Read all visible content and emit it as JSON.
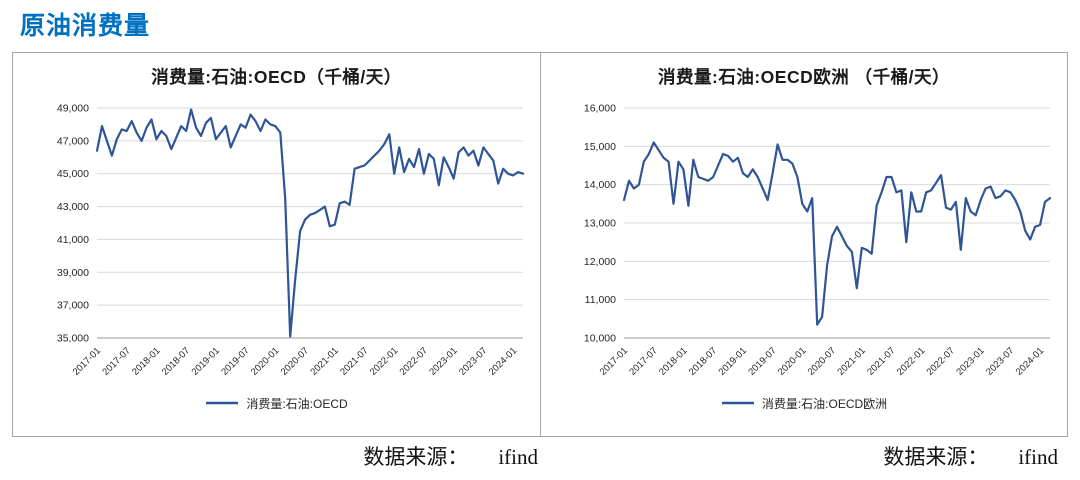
{
  "page": {
    "header": "原油消费量"
  },
  "sources": {
    "left": {
      "label": "数据来源：",
      "value": "ifind"
    },
    "right": {
      "label": "数据来源：",
      "value": "ifind"
    }
  },
  "chart_data": [
    {
      "type": "line",
      "title": "消费量:石油:OECD（千桶/天）",
      "legend": "消费量:石油:OECD",
      "line_color": "#2f5597",
      "grid": true,
      "legend_position": "bottom",
      "ylim": [
        35000,
        49000
      ],
      "ytick_step": 2000,
      "ytick_labels": [
        "35,000",
        "37,000",
        "39,000",
        "41,000",
        "43,000",
        "45,000",
        "47,000",
        "49,000"
      ],
      "x_start": "2017-01",
      "x_end": "2024-03",
      "frequency": "monthly",
      "x_tick_labels": [
        "2017-01",
        "2017-07",
        "2018-01",
        "2018-07",
        "2019-01",
        "2019-07",
        "2020-01",
        "2020-07",
        "2021-01",
        "2021-07",
        "2022-01",
        "2022-07",
        "2023-01",
        "2023-07",
        "2024-01"
      ],
      "x_tick_every": 6,
      "values": [
        46400,
        47900,
        47000,
        46100,
        47100,
        47700,
        47600,
        48200,
        47500,
        47000,
        47800,
        48300,
        47100,
        47600,
        47300,
        46500,
        47200,
        47900,
        47600,
        48900,
        47800,
        47300,
        48100,
        48400,
        47100,
        47500,
        47900,
        46600,
        47300,
        48000,
        47800,
        48600,
        48200,
        47600,
        48300,
        48000,
        47900,
        47500,
        43500,
        35100,
        38500,
        41500,
        42200,
        42500,
        42600,
        42800,
        43000,
        41800,
        41900,
        43200,
        43300,
        43100,
        45300,
        45400,
        45500,
        45800,
        46100,
        46400,
        46800,
        47400,
        45000,
        46600,
        45100,
        45900,
        45400,
        46500,
        45000,
        46200,
        45900,
        44300,
        46000,
        45400,
        44700,
        46300,
        46600,
        46100,
        46400,
        45500,
        46600,
        46200,
        45800,
        44400,
        45300,
        45000,
        44900,
        45100,
        45000
      ]
    },
    {
      "type": "line",
      "title": "消费量:石油:OECD欧洲 （千桶/天）",
      "legend": "消费量:石油:OECD欧洲",
      "line_color": "#2f5597",
      "grid": true,
      "legend_position": "bottom",
      "ylim": [
        10000,
        16000
      ],
      "ytick_step": 1000,
      "ytick_labels": [
        "10,000",
        "11,000",
        "12,000",
        "13,000",
        "14,000",
        "15,000",
        "16,000"
      ],
      "x_start": "2017-01",
      "x_end": "2024-03",
      "frequency": "monthly",
      "x_tick_labels": [
        "2017-01",
        "2017-07",
        "2018-01",
        "2018-07",
        "2019-01",
        "2019-07",
        "2020-01",
        "2020-07",
        "2021-01",
        "2021-07",
        "2022-01",
        "2022-07",
        "2023-01",
        "2023-07",
        "2024-01"
      ],
      "x_tick_every": 6,
      "values": [
        13600,
        14100,
        13900,
        14000,
        14600,
        14800,
        15100,
        14900,
        14700,
        14600,
        13500,
        14600,
        14400,
        13450,
        14650,
        14200,
        14150,
        14100,
        14200,
        14500,
        14800,
        14750,
        14600,
        14700,
        14300,
        14200,
        14400,
        14200,
        13900,
        13600,
        14300,
        15050,
        14650,
        14650,
        14550,
        14200,
        13500,
        13300,
        13650,
        10350,
        10550,
        11900,
        12650,
        12900,
        12650,
        12400,
        12250,
        11300,
        12350,
        12300,
        12200,
        13450,
        13800,
        14200,
        14200,
        13800,
        13850,
        12500,
        13800,
        13300,
        13300,
        13800,
        13850,
        14050,
        14250,
        13400,
        13350,
        13550,
        12300,
        13650,
        13300,
        13200,
        13600,
        13900,
        13950,
        13650,
        13700,
        13850,
        13800,
        13600,
        13300,
        12800,
        12570,
        12900,
        12950,
        13550,
        13650
      ]
    }
  ]
}
